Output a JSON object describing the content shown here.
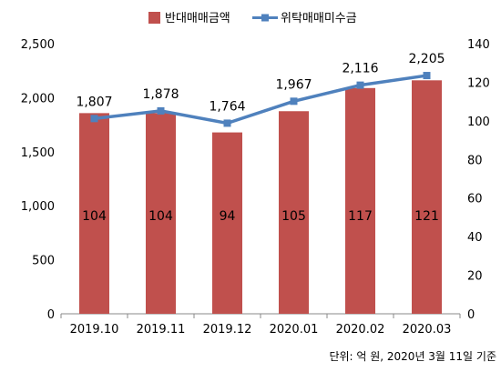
{
  "chart_data": {
    "type": "bar+line",
    "categories": [
      "2019.10",
      "2019.11",
      "2019.12",
      "2020.01",
      "2020.02",
      "2020.03"
    ],
    "series": [
      {
        "name": "반대매매금액",
        "type": "bar",
        "axis": "right",
        "values": [
          104,
          104,
          94,
          105,
          117,
          121
        ],
        "color": "#c0504d"
      },
      {
        "name": "위탁매매미수금",
        "type": "line",
        "axis": "left",
        "values": [
          1807,
          1878,
          1764,
          1967,
          2116,
          2205
        ],
        "labels": [
          "1,807",
          "1,878",
          "1,764",
          "1,967",
          "2,116",
          "2,205"
        ],
        "color": "#4f81bd"
      }
    ],
    "bar_labels": [
      "104",
      "104",
      "94",
      "105",
      "117",
      "121"
    ],
    "left_axis": {
      "range": [
        0,
        2500
      ],
      "ticks": [
        0,
        500,
        1000,
        1500,
        2000,
        2500
      ],
      "tick_labels": [
        "0",
        "500",
        "1,000",
        "1,500",
        "2,000",
        "2,500"
      ]
    },
    "right_axis": {
      "range": [
        0,
        140
      ],
      "ticks": [
        0,
        20,
        40,
        60,
        80,
        100,
        120,
        140
      ],
      "tick_labels": [
        "0",
        "20",
        "40",
        "60",
        "80",
        "100",
        "120",
        "140"
      ]
    },
    "legend": {
      "position": "top"
    },
    "note": "단위: 억 원, 2020년 3월 11일 기준",
    "grid": false
  }
}
